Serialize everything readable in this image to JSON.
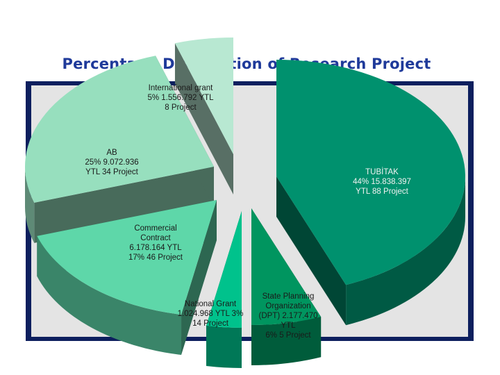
{
  "chart_data": {
    "type": "pie",
    "title": "Percentage Distribution of Research Project",
    "slices": [
      {
        "name": "TUBİTAK",
        "percent": 44,
        "amount": "15.838.397",
        "unit": "YTL",
        "projects": 88,
        "color": "#00916e",
        "label_lines": [
          "TUBİTAK",
          "44%  15.838.397",
          "YTL 88 Project"
        ]
      },
      {
        "name": "State Planning Organization (DPT)",
        "percent": 6,
        "amount": "2.177.470",
        "unit": "YTL",
        "projects": 5,
        "color": "#00955f",
        "label_lines": [
          "State Planning",
          "Organization",
          "(DPT) 2.177.470",
          "YTL",
          "6%  5 Project"
        ]
      },
      {
        "name": "National Grant",
        "percent": 3,
        "amount": "1.024.968",
        "unit": "YTL",
        "projects": 14,
        "color": "#00c28c",
        "label_lines": [
          "National  Grant",
          "1.024.968 YTL  3%",
          "14 Project"
        ]
      },
      {
        "name": "Commercial Contract",
        "percent": 17,
        "amount": "6.178.164",
        "unit": "YTL",
        "projects": 46,
        "color": "#5ed7a9",
        "label_lines": [
          "Commercial",
          "Contract",
          "6.178.164 YTL",
          "17%  46 Project"
        ]
      },
      {
        "name": "AB",
        "percent": 25,
        "amount": "9.072.936",
        "unit": "YTL",
        "projects": 34,
        "color": "#97dfbe",
        "label_lines": [
          "AB",
          "25%  9.072.936",
          "YTL 34 Project"
        ]
      },
      {
        "name": "International grant",
        "percent": 5,
        "amount": "1.556.792",
        "unit": "YTL",
        "projects": 8,
        "color": "#b8e8d2",
        "label_lines": [
          "International grant",
          "5%  1.556.792 YTL",
          "8 Project"
        ]
      }
    ]
  }
}
